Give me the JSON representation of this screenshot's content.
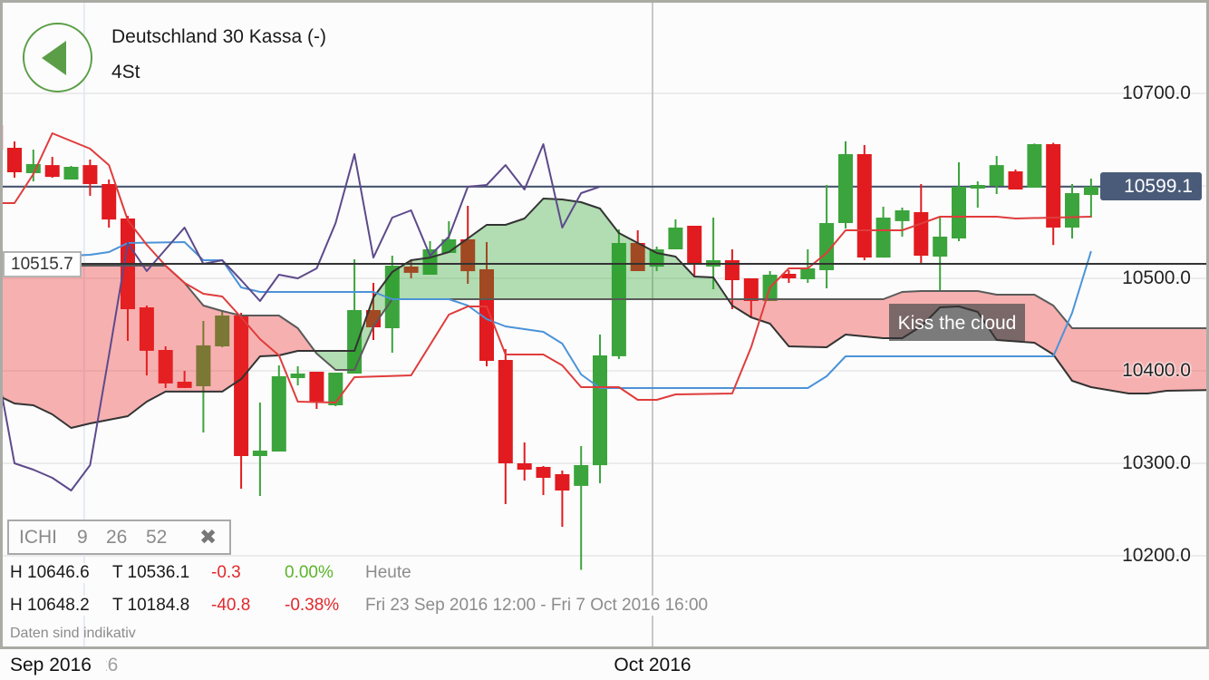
{
  "header": {
    "title": "Deutschland 30 Kassa (-)",
    "interval": "4St",
    "back_icon": "back-arrow-icon"
  },
  "price_tags": {
    "last_price": "10599.1",
    "crosshair_price": "10515.7"
  },
  "indicator_legend": {
    "name": "ICHI",
    "params": [
      "9",
      "26",
      "52"
    ],
    "close_glyph": "✖"
  },
  "stats": {
    "today": {
      "high": "H 10646.6",
      "low": "T 10536.1",
      "change": "-0.3",
      "change_pct": "0.00%",
      "period": "Heute"
    },
    "range": {
      "high": "H 10648.2",
      "low": "T 10184.8",
      "change": "-40.8",
      "change_pct": "-0.38%",
      "period": "Fri 23 Sep 2016 12:00 - Fri 7 Oct 2016 16:00"
    },
    "disclaimer": "Daten sind indikativ"
  },
  "annotation": {
    "text": "Kiss the cloud"
  },
  "x_axis": {
    "sep_label": "Sep 2016",
    "day_label": "26",
    "oct_label": "Oct 2016"
  },
  "colors": {
    "up": "#3ca43c",
    "down": "#e11b1f",
    "tenkan": "#e03c3c",
    "kijun": "#4b93d8",
    "chikou": "#5d4a8b",
    "senkou_a": "#333333",
    "senkou_b": "#5a5a5a",
    "cloud_bull": "#28a028",
    "cloud_bear": "#ec2a2a",
    "last_price": "#44546e",
    "crosshair": "#333333",
    "grid": "#ececec",
    "negative": "#e2282c",
    "positive": "#5bb52b",
    "accent": "#5c9e47"
  },
  "chart_data": {
    "type": "candlestick",
    "title": "Deutschland 30 Kassa (-)",
    "interval": "4St",
    "indicator": "Ichimoku (9, 26, 52)",
    "xlim": [
      -0.7678,
      63.1
    ],
    "ylim": [
      10101.96,
      10798.04
    ],
    "y_grid": [
      10200,
      10300,
      10400,
      10500,
      10600,
      10700
    ],
    "y_ticks": [
      {
        "value": 10700,
        "label": "10700.0"
      },
      {
        "value": 10500,
        "label": "10500.0"
      },
      {
        "value": 10400,
        "label": "10400.0"
      },
      {
        "value": 10300,
        "label": "10300.0"
      },
      {
        "value": 10200,
        "label": "10200.0"
      }
    ],
    "vlines": [
      {
        "name": "sep-26-line",
        "index": 3.69,
        "color": "#e6eaf4"
      },
      {
        "name": "oct-2016-line",
        "index": 33.78,
        "color": "#c8c8c8"
      }
    ],
    "hlines": [
      {
        "name": "last-price-line",
        "value": 10599.1,
        "color": "#44546e"
      },
      {
        "name": "crosshair-line",
        "value": 10515.7,
        "color": "#333333"
      }
    ],
    "first_index": -1,
    "candle_format": [
      "open",
      "high",
      "low",
      "close"
    ],
    "candles": [
      [
        10665.7,
        10673.5,
        10636.3,
        10639.2
      ],
      [
        10641.2,
        10648.0,
        10608.8,
        10614.7
      ],
      [
        10613.7,
        10639.2,
        10604.9,
        10623.5
      ],
      [
        10622.5,
        10631.4,
        10608.8,
        10609.8
      ],
      [
        10606.9,
        10621.6,
        10606.9,
        10620.6
      ],
      [
        10622.5,
        10628.4,
        10589.2,
        10602.0
      ],
      [
        10602.0,
        10606.9,
        10554.9,
        10563.7
      ],
      [
        10564.7,
        10567.6,
        10432.4,
        10466.7
      ],
      [
        10468.6,
        10470.6,
        10395.1,
        10421.6
      ],
      [
        10422.5,
        10426.5,
        10381.4,
        10386.3
      ],
      [
        10388.2,
        10400.0,
        10381.4,
        10381.4
      ],
      [
        10383.3,
        10453.9,
        10333.3,
        10427.5
      ],
      [
        10426.5,
        10465.7,
        10425.5,
        10459.8
      ],
      [
        10459.8,
        10462.7,
        10272.5,
        10307.8
      ],
      [
        10307.8,
        10365.7,
        10264.7,
        10313.7
      ],
      [
        10312.7,
        10405.9,
        10312.7,
        10394.1
      ],
      [
        10392.2,
        10404.9,
        10384.3,
        10397.1
      ],
      [
        10399.0,
        10399.0,
        10358.8,
        10366.7
      ],
      [
        10362.7,
        10398.0,
        10361.8,
        10398.0
      ],
      [
        10397.1,
        10520.6,
        10397.1,
        10465.7
      ],
      [
        10465.7,
        10495.1,
        10433.3,
        10447.1
      ],
      [
        10446.1,
        10524.5,
        10419.6,
        10513.7
      ],
      [
        10512.7,
        10519.6,
        10500.0,
        10505.9
      ],
      [
        10503.9,
        10540.2,
        10503.9,
        10531.4
      ],
      [
        10527.5,
        10561.8,
        10527.5,
        10542.2
      ],
      [
        10542.2,
        10578.4,
        10494.1,
        10507.8
      ],
      [
        10509.8,
        10539.2,
        10404.9,
        10410.8
      ],
      [
        10411.8,
        10423.5,
        10255.9,
        10300.0
      ],
      [
        10300.0,
        10322.5,
        10281.4,
        10293.1
      ],
      [
        10296.1,
        10297.1,
        10265.7,
        10284.3
      ],
      [
        10288.2,
        10292.2,
        10231.4,
        10270.6
      ],
      [
        10275.5,
        10318.6,
        10184.8,
        10298.0
      ],
      [
        10298.0,
        10439.2,
        10278.4,
        10416.7
      ],
      [
        10415.7,
        10552.9,
        10412.7,
        10538.2
      ],
      [
        10538.2,
        10552.0,
        10507.8,
        10507.8
      ],
      [
        10512.7,
        10534.3,
        10507.8,
        10531.4
      ],
      [
        10531.4,
        10563.7,
        10531.4,
        10554.9
      ],
      [
        10556.9,
        10556.9,
        10502.0,
        10515.7
      ],
      [
        10512.7,
        10565.7,
        10488.2,
        10519.6
      ],
      [
        10519.6,
        10531.4,
        10466.7,
        10498.0
      ],
      [
        10500.0,
        10500.0,
        10456.9,
        10475.5
      ],
      [
        10475.5,
        10507.8,
        10475.5,
        10503.9
      ],
      [
        10504.9,
        10508.8,
        10495.1,
        10500.0
      ],
      [
        10499.0,
        10531.4,
        10495.1,
        10510.8
      ],
      [
        10508.8,
        10601.0,
        10489.2,
        10559.8
      ],
      [
        10559.8,
        10648.2,
        10553.9,
        10634.3
      ],
      [
        10634.3,
        10644.1,
        10519.6,
        10522.5
      ],
      [
        10522.5,
        10577.5,
        10522.5,
        10565.7
      ],
      [
        10561.8,
        10576.5,
        10545.1,
        10573.5
      ],
      [
        10571.6,
        10602.0,
        10516.7,
        10524.5
      ],
      [
        10523.5,
        10565.7,
        10485.3,
        10545.1
      ],
      [
        10543.1,
        10625.5,
        10540.2,
        10599.0
      ],
      [
        10597.1,
        10604.9,
        10576.5,
        10601.0
      ],
      [
        10600.0,
        10632.4,
        10591.2,
        10622.5
      ],
      [
        10615.7,
        10617.6,
        10596.1,
        10596.1
      ],
      [
        10598.0,
        10645.8,
        10598.0,
        10645.1
      ],
      [
        10645.1,
        10646.6,
        10536.1,
        10554.9
      ],
      [
        10554.9,
        10602.0,
        10543.1,
        10592.2
      ],
      [
        10590.2,
        10607.8,
        10565.7,
        10599.1
      ]
    ],
    "lines": {
      "tenkan_sen": {
        "period": 9,
        "points": [
          [
            -1,
            10581.4
          ],
          [
            0,
            10581.4
          ],
          [
            1,
            10612.7
          ],
          [
            2,
            10656.9
          ],
          [
            4,
            10640.2
          ],
          [
            5,
            10622.5
          ],
          [
            6,
            10562.7
          ],
          [
            7,
            10536.3
          ],
          [
            8,
            10513.7
          ],
          [
            9,
            10495.1
          ],
          [
            10,
            10483.3
          ],
          [
            11,
            10480.4
          ],
          [
            12,
            10457.8
          ],
          [
            13,
            10434.3
          ],
          [
            14,
            10416.7
          ],
          [
            15,
            10366.7
          ],
          [
            17,
            10365.7
          ],
          [
            18,
            10393.1
          ],
          [
            21,
            10395.1
          ],
          [
            23,
            10460.8
          ],
          [
            24,
            10469.6
          ],
          [
            25,
            10469.6
          ],
          [
            26,
            10417.6
          ],
          [
            28,
            10417.6
          ],
          [
            29,
            10405.9
          ],
          [
            30,
            10382.4
          ],
          [
            32,
            10382.4
          ],
          [
            33,
            10368.6
          ],
          [
            34,
            10368.6
          ],
          [
            35,
            10374.5
          ],
          [
            38,
            10375.5
          ],
          [
            39,
            10425.5
          ],
          [
            40,
            10490.2
          ],
          [
            41,
            10510.8
          ],
          [
            42,
            10510.8
          ],
          [
            43,
            10527.5
          ],
          [
            44,
            10552.0
          ],
          [
            47,
            10552.0
          ],
          [
            49,
            10566.7
          ],
          [
            52,
            10566.7
          ],
          [
            53,
            10564.7
          ],
          [
            57,
            10566.7
          ]
        ]
      },
      "kijun_sen": {
        "period": 26,
        "points": [
          [
            -1,
            10520.6
          ],
          [
            4,
            10525.5
          ],
          [
            5,
            10528.4
          ],
          [
            6,
            10538.2
          ],
          [
            9,
            10539.2
          ],
          [
            10,
            10519.6
          ],
          [
            11,
            10519.6
          ],
          [
            12,
            10490.2
          ],
          [
            13,
            10485.3
          ],
          [
            19,
            10485.3
          ],
          [
            20,
            10477.5
          ],
          [
            23,
            10477.5
          ],
          [
            24,
            10470.6
          ],
          [
            25,
            10455.9
          ],
          [
            26,
            10448.0
          ],
          [
            28,
            10442.2
          ],
          [
            29,
            10429.4
          ],
          [
            30,
            10396.1
          ],
          [
            31,
            10381.4
          ],
          [
            42,
            10381.4
          ],
          [
            43,
            10394.1
          ],
          [
            44,
            10415.7
          ],
          [
            55,
            10415.7
          ],
          [
            56,
            10462.7
          ],
          [
            57,
            10529.4
          ]
        ]
      },
      "chikou_span": {
        "shift": -26,
        "points": [
          [
            -1,
            10410.8
          ],
          [
            0,
            10300.0
          ],
          [
            1,
            10293.1
          ],
          [
            2,
            10284.3
          ],
          [
            3,
            10270.6
          ],
          [
            4,
            10298.0
          ],
          [
            5,
            10416.7
          ],
          [
            6,
            10538.2
          ],
          [
            7,
            10507.8
          ],
          [
            8,
            10531.4
          ],
          [
            9,
            10554.9
          ],
          [
            10,
            10515.7
          ],
          [
            11,
            10519.6
          ],
          [
            12,
            10498.0
          ],
          [
            13,
            10475.5
          ],
          [
            14,
            10503.9
          ],
          [
            15,
            10500.0
          ],
          [
            16,
            10510.8
          ],
          [
            17,
            10559.8
          ],
          [
            18,
            10634.3
          ],
          [
            19,
            10522.5
          ],
          [
            20,
            10565.7
          ],
          [
            21,
            10573.5
          ],
          [
            22,
            10524.5
          ],
          [
            23,
            10545.1
          ],
          [
            24,
            10599.0
          ],
          [
            25,
            10601.0
          ],
          [
            26,
            10622.5
          ],
          [
            27,
            10596.1
          ],
          [
            28,
            10645.1
          ],
          [
            29,
            10554.9
          ],
          [
            30,
            10592.2
          ],
          [
            31,
            10599.1
          ]
        ]
      },
      "senkou_span_a": {
        "shift": 26,
        "points": [
          [
            -1,
            10374.5
          ],
          [
            0,
            10364.7
          ],
          [
            1,
            10362.7
          ],
          [
            2,
            10352.9
          ],
          [
            3,
            10338.2
          ],
          [
            4,
            10343.1
          ],
          [
            5,
            10347.1
          ],
          [
            6,
            10351.0
          ],
          [
            7,
            10366.7
          ],
          [
            8,
            10377.5
          ],
          [
            11,
            10377.5
          ],
          [
            12,
            10391.2
          ],
          [
            13,
            10415.7
          ],
          [
            14,
            10416.7
          ],
          [
            15,
            10421.6
          ],
          [
            18,
            10421.6
          ],
          [
            19,
            10479.4
          ],
          [
            20,
            10506.9
          ],
          [
            21,
            10519.6
          ],
          [
            22,
            10522.5
          ],
          [
            23,
            10528.4
          ],
          [
            24,
            10543.1
          ],
          [
            25,
            10557.8
          ],
          [
            26,
            10557.8
          ],
          [
            27,
            10564.7
          ],
          [
            28,
            10586.3
          ],
          [
            29,
            10585.3
          ],
          [
            30,
            10582.4
          ],
          [
            31,
            10575.5
          ],
          [
            32,
            10549.0
          ],
          [
            33,
            10538.2
          ],
          [
            34,
            10527.5
          ],
          [
            35,
            10523.5
          ],
          [
            36,
            10502.0
          ],
          [
            37,
            10501.0
          ],
          [
            38,
            10470.6
          ],
          [
            39,
            10457.8
          ],
          [
            40,
            10451.0
          ],
          [
            41,
            10426.5
          ],
          [
            43,
            10425.5
          ],
          [
            44,
            10439.2
          ],
          [
            46,
            10435.3
          ],
          [
            47,
            10435.3
          ],
          [
            48,
            10448.0
          ],
          [
            49,
            10468.6
          ],
          [
            50,
            10469.6
          ],
          [
            51,
            10463.7
          ],
          [
            52,
            10433.3
          ],
          [
            54,
            10430.4
          ],
          [
            55,
            10417.6
          ],
          [
            56,
            10389.2
          ],
          [
            57,
            10382.4
          ],
          [
            59,
            10375.5
          ],
          [
            60,
            10375.5
          ],
          [
            61,
            10378.4
          ],
          [
            64,
            10379.4
          ]
        ]
      },
      "senkou_span_b": {
        "period": 52,
        "shift": 26,
        "points": [
          [
            -1,
            10513.7
          ],
          [
            8,
            10513.7
          ],
          [
            9,
            10495.1
          ],
          [
            10,
            10470.6
          ],
          [
            11,
            10464.7
          ],
          [
            12,
            10459.8
          ],
          [
            14,
            10459.8
          ],
          [
            15,
            10446.1
          ],
          [
            16,
            10418.6
          ],
          [
            17,
            10401.0
          ],
          [
            18,
            10401.0
          ],
          [
            19,
            10448.0
          ],
          [
            20,
            10477.5
          ],
          [
            46,
            10477.5
          ],
          [
            47,
            10485.3
          ],
          [
            48,
            10486.3
          ],
          [
            51,
            10486.3
          ],
          [
            52,
            10482.4
          ],
          [
            54,
            10482.4
          ],
          [
            55,
            10470.6
          ],
          [
            56,
            10446.1
          ],
          [
            64,
            10446.1
          ]
        ]
      }
    },
    "annotations": [
      {
        "text": "Kiss the cloud",
        "near_index": 50,
        "near_value": 10470
      }
    ]
  }
}
